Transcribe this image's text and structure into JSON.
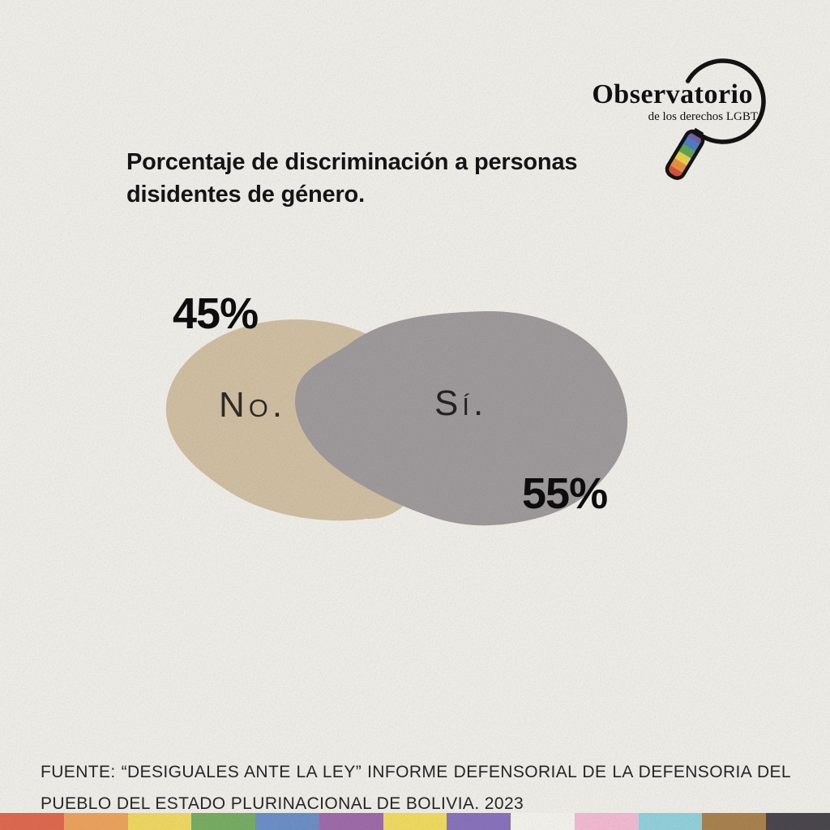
{
  "theme": {
    "background": "#f2f0eb",
    "text": "#141414"
  },
  "header": {
    "logo": {
      "title": "Observatorio",
      "subtitle": "de los derechos LGBT",
      "icon": "magnifying-glass-rainbow-icon",
      "handle_colors": [
        "#7a5fa8",
        "#4f7fc4",
        "#61a556",
        "#e9d34b",
        "#e89140",
        "#d85340"
      ]
    }
  },
  "title": {
    "line1": "Porcentaje de discriminación a personas",
    "line2": "disidentes de género."
  },
  "chart_data": {
    "type": "pie",
    "title": "Porcentaje de discriminación a personas disidentes de género.",
    "categories": [
      "No",
      "Sí"
    ],
    "values": [
      45,
      55
    ],
    "unit": "%",
    "legend_position": "none",
    "style": "two overlapping organic blob shapes, value labels outside, category labels inside",
    "slices": {
      "no": {
        "label": "No.",
        "value_text": "45%",
        "color": "#d2c1a3"
      },
      "si": {
        "label": "Sí.",
        "value_text": "55%",
        "color": "#a09c9e"
      }
    }
  },
  "source": {
    "line1": "FUENTE: “DESIGUALES ANTE LA LEY” INFORME DEFENSORIAL DE LA DEFENSORIA DEL",
    "line2": "PUEBLO DEL ESTADO PLURINACIONAL DE BOLIVIA. 2023"
  },
  "footer_stripe": {
    "colors": [
      "#e06a50",
      "#eda55e",
      "#f2d964",
      "#79ae65",
      "#6d90c9",
      "#a06cab",
      "#f2dc62",
      "#8a74bd",
      "#f6f4ee",
      "#f4bcd3",
      "#92d2de",
      "#aa8350",
      "#4b474e"
    ]
  }
}
